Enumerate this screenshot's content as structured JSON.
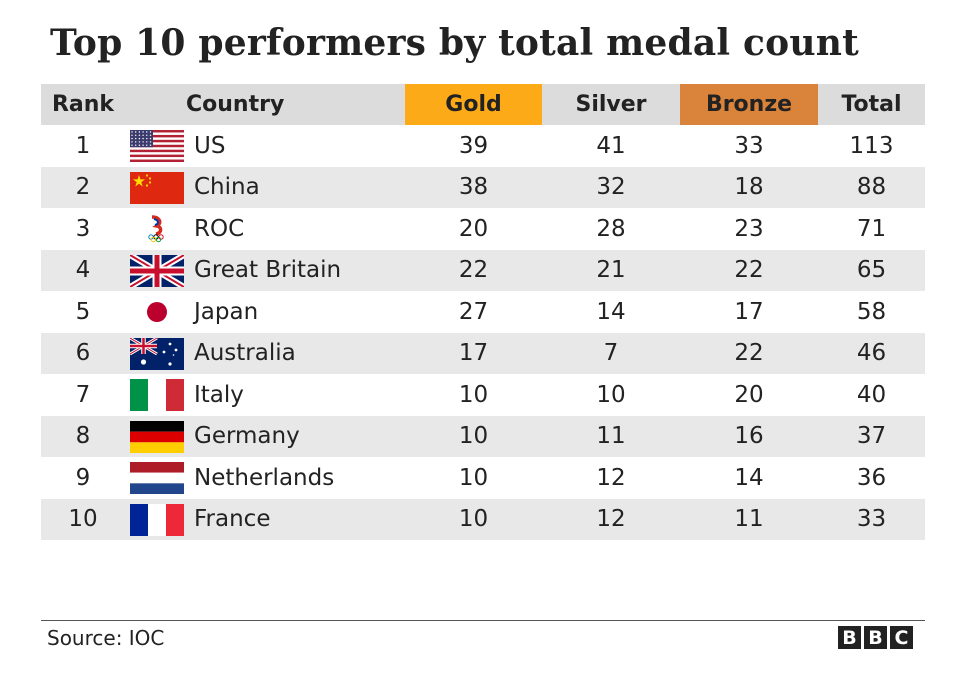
{
  "chart_data": {
    "type": "table",
    "title": "Top 10 performers by total medal count",
    "columns": [
      "Rank",
      "Country",
      "Gold",
      "Silver",
      "Bronze",
      "Total"
    ],
    "header_colors": {
      "gold": "#fdaa18",
      "bronze": "#d9833b",
      "header_bg": "#dcdcdc",
      "shade": "#e8e8e8"
    },
    "rows": [
      {
        "rank": "1",
        "country": "US",
        "flag": "us-flag-icon",
        "gold": "39",
        "silver": "41",
        "bronze": "33",
        "total": "113"
      },
      {
        "rank": "2",
        "country": "China",
        "flag": "china-flag-icon",
        "gold": "38",
        "silver": "32",
        "bronze": "18",
        "total": "88"
      },
      {
        "rank": "3",
        "country": "ROC",
        "flag": "roc-emblem-icon",
        "gold": "20",
        "silver": "28",
        "bronze": "23",
        "total": "71"
      },
      {
        "rank": "4",
        "country": "Great Britain",
        "flag": "uk-flag-icon",
        "gold": "22",
        "silver": "21",
        "bronze": "22",
        "total": "65"
      },
      {
        "rank": "5",
        "country": "Japan",
        "flag": "japan-flag-icon",
        "gold": "27",
        "silver": "14",
        "bronze": "17",
        "total": "58"
      },
      {
        "rank": "6",
        "country": "Australia",
        "flag": "australia-flag-icon",
        "gold": "17",
        "silver": "7",
        "bronze": "22",
        "total": "46"
      },
      {
        "rank": "7",
        "country": "Italy",
        "flag": "italy-flag-icon",
        "gold": "10",
        "silver": "10",
        "bronze": "20",
        "total": "40"
      },
      {
        "rank": "8",
        "country": "Germany",
        "flag": "germany-flag-icon",
        "gold": "10",
        "silver": "11",
        "bronze": "16",
        "total": "37"
      },
      {
        "rank": "9",
        "country": "Netherlands",
        "flag": "netherlands-flag-icon",
        "gold": "10",
        "silver": "12",
        "bronze": "14",
        "total": "36"
      },
      {
        "rank": "10",
        "country": "France",
        "flag": "france-flag-icon",
        "gold": "10",
        "silver": "12",
        "bronze": "11",
        "total": "33"
      }
    ]
  },
  "footer": {
    "source": "Source: IOC",
    "logo": [
      "B",
      "B",
      "C"
    ]
  }
}
